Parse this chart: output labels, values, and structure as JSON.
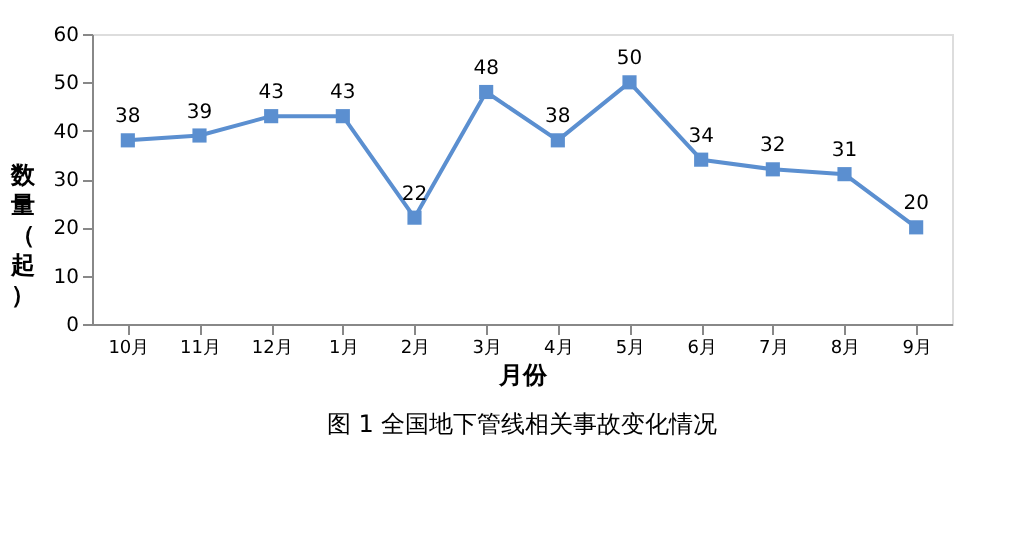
{
  "chart_data": {
    "type": "line",
    "ylabel": "数量（起）",
    "xlabel": "月份",
    "categories": [
      "10月",
      "11月",
      "12月",
      "1月",
      "2月",
      "3月",
      "4月",
      "5月",
      "6月",
      "7月",
      "8月",
      "9月"
    ],
    "series": [
      {
        "color": "#5b8fd0",
        "values": [
          38,
          39,
          43,
          43,
          22,
          48,
          38,
          50,
          34,
          32,
          31,
          20
        ]
      }
    ],
    "ylim": [
      0,
      60
    ],
    "yticks": [
      0,
      10,
      20,
      30,
      40,
      50,
      60
    ],
    "grid": false,
    "legend": false,
    "marker": "square",
    "line_style": "solid",
    "data_labels": true,
    "annotations": [
      "图 1 全国地下管线相关事故变化情况"
    ]
  }
}
